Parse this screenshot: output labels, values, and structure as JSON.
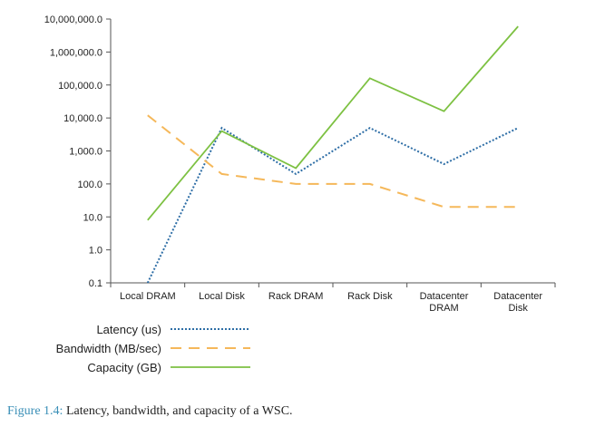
{
  "chart_data": {
    "type": "line",
    "title": "",
    "xlabel": "",
    "ylabel": "",
    "yscale": "log",
    "ylim": [
      0.1,
      10000000
    ],
    "grid": false,
    "legend_position": "bottom-left",
    "categories": [
      [
        "Local DRAM"
      ],
      [
        "Local Disk"
      ],
      [
        "Rack DRAM"
      ],
      [
        "Rack Disk"
      ],
      [
        "Datacenter",
        "DRAM"
      ],
      [
        "Datacenter",
        "Disk"
      ]
    ],
    "yticks": [
      {
        "value": 0.1,
        "label": "0.1"
      },
      {
        "value": 1,
        "label": "1.0"
      },
      {
        "value": 10,
        "label": "10.0"
      },
      {
        "value": 100,
        "label": "100.0"
      },
      {
        "value": 1000,
        "label": "1,000.0"
      },
      {
        "value": 10000,
        "label": "10,000.0"
      },
      {
        "value": 100000,
        "label": "100,000.0"
      },
      {
        "value": 1000000,
        "label": "1,000,000.0"
      },
      {
        "value": 10000000,
        "label": "10,000,000.0"
      }
    ],
    "series": [
      {
        "name": "Latency (us)",
        "values": [
          0.1,
          5000,
          200,
          5000,
          400,
          5000
        ],
        "color": "#2e6ea6",
        "style": "dotted"
      },
      {
        "name": "Bandwidth (MB/sec)",
        "values": [
          12000,
          200,
          100,
          100,
          20,
          20
        ],
        "color": "#f5b85a",
        "style": "dashed"
      },
      {
        "name": "Capacity (GB)",
        "values": [
          8,
          4000,
          300,
          160000,
          16000,
          6000000
        ],
        "color": "#7dc142",
        "style": "solid"
      }
    ]
  },
  "caption": {
    "figure_number": "Figure 1.4:",
    "text": " Latency, bandwidth, and capacity of a WSC."
  }
}
